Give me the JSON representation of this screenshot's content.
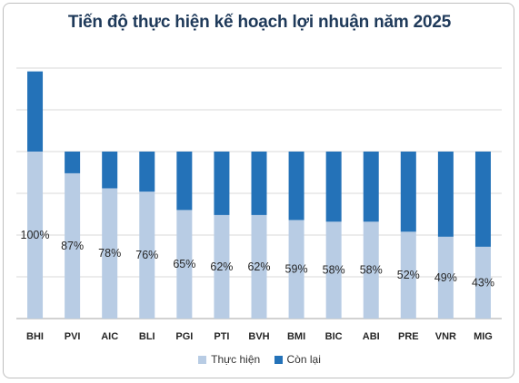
{
  "chart_data": {
    "type": "bar",
    "stacked": true,
    "title": "Tiến độ thực hiện kế hoạch lợi nhuận năm 2025",
    "categories": [
      "BHI",
      "PVI",
      "AIC",
      "BLI",
      "PGI",
      "PTI",
      "BVH",
      "BMI",
      "BIC",
      "ABI",
      "PRE",
      "VNR",
      "MIG"
    ],
    "series": [
      {
        "name": "Thực hiện",
        "color": "#b8cce4",
        "values": [
          100,
          87,
          78,
          76,
          65,
          62,
          62,
          59,
          58,
          58,
          52,
          49,
          43
        ]
      },
      {
        "name": "Còn lại",
        "color": "#2472b8",
        "values": [
          48,
          13,
          22,
          24,
          35,
          38,
          38,
          41,
          42,
          42,
          48,
          51,
          57
        ]
      }
    ],
    "data_labels": [
      "100%",
      "87%",
      "78%",
      "76%",
      "65%",
      "62%",
      "62%",
      "59%",
      "58%",
      "58%",
      "52%",
      "49%",
      "43%"
    ],
    "ylim": [
      0,
      150
    ],
    "grid": true,
    "legend_position": "bottom"
  }
}
